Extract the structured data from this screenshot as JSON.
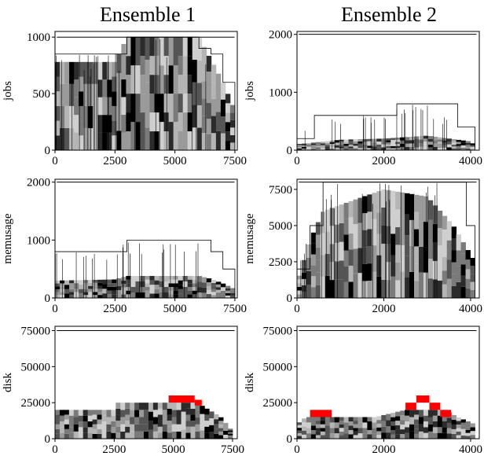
{
  "columns": [
    {
      "title": "Ensemble 1"
    },
    {
      "title": "Ensemble 2"
    }
  ],
  "colors": {
    "red_block": "#ff0000",
    "grays": [
      "#000000",
      "#2b2b2b",
      "#555555",
      "#7a7a7a",
      "#9a9a9a",
      "#b5b5b5",
      "#cfcfcf"
    ]
  },
  "chart_data": [
    {
      "type": "area",
      "description_ensemble": "Ensemble 1",
      "ylabel": "jobs",
      "xlim": [
        0,
        7600
      ],
      "ylim": [
        0,
        1050
      ],
      "xticks": [
        "0",
        "2500",
        "5000",
        "7500"
      ],
      "xtick_values": [
        0,
        2500,
        5000,
        7500
      ],
      "yticks": [
        "0",
        "500",
        "1000"
      ],
      "ytick_values": [
        0,
        500,
        1000
      ],
      "capacity_line": 1000,
      "envelope": {
        "x": [
          0,
          300,
          2500,
          3000,
          5500,
          6000,
          6500,
          7000,
          7500
        ],
        "y": [
          850,
          850,
          850,
          1000,
          1000,
          900,
          850,
          600,
          400
        ]
      },
      "stack_top": {
        "x": [
          0,
          2500,
          3000,
          6000,
          6500,
          7000,
          7500
        ],
        "y": [
          780,
          780,
          1000,
          1000,
          800,
          600,
          350
        ]
      }
    },
    {
      "type": "area",
      "description_ensemble": "Ensemble 2",
      "ylabel": "jobs",
      "xlim": [
        0,
        4200
      ],
      "ylim": [
        0,
        2050
      ],
      "xticks": [
        "0",
        "2000",
        "4000"
      ],
      "xtick_values": [
        0,
        2000,
        4000
      ],
      "yticks": [
        "0",
        "1000",
        "2000"
      ],
      "ytick_values": [
        0,
        1000,
        2000
      ],
      "capacity_line": 2000,
      "envelope": {
        "x": [
          0,
          400,
          1800,
          2300,
          3000,
          3700,
          4100
        ],
        "y": [
          200,
          600,
          600,
          800,
          800,
          400,
          300
        ]
      },
      "stack_top": {
        "x": [
          0,
          1000,
          2000,
          3000,
          4000,
          4100
        ],
        "y": [
          100,
          180,
          200,
          250,
          150,
          80
        ]
      }
    },
    {
      "type": "area",
      "description_ensemble": "Ensemble 1",
      "ylabel": "memusage",
      "xlim": [
        0,
        7600
      ],
      "ylim": [
        0,
        2050
      ],
      "xticks": [
        "0",
        "2500",
        "5000",
        "7500"
      ],
      "xtick_values": [
        0,
        2500,
        5000,
        7500
      ],
      "yticks": [
        "0",
        "1000",
        "2000"
      ],
      "ytick_values": [
        0,
        1000,
        2000
      ],
      "capacity_line": 2000,
      "envelope": {
        "x": [
          0,
          300,
          2500,
          3000,
          5500,
          6000,
          6500,
          7000,
          7500
        ],
        "y": [
          800,
          800,
          800,
          1000,
          1000,
          1000,
          800,
          500,
          300
        ]
      },
      "stack_top": {
        "x": [
          0,
          2500,
          3000,
          6000,
          6500,
          7000,
          7500
        ],
        "y": [
          300,
          320,
          380,
          380,
          330,
          250,
          150
        ]
      }
    },
    {
      "type": "area",
      "description_ensemble": "Ensemble 2",
      "ylabel": "memusage",
      "xlim": [
        0,
        4200
      ],
      "ylim": [
        0,
        8200
      ],
      "xticks": [
        "0",
        "2000",
        "4000"
      ],
      "xtick_values": [
        0,
        2000,
        4000
      ],
      "yticks": [
        "0",
        "2500",
        "5000",
        "7500"
      ],
      "ytick_values": [
        0,
        2500,
        5000,
        7500
      ],
      "capacity_line": 8000,
      "envelope": {
        "x": [
          0,
          300,
          600,
          3600,
          3900,
          4100
        ],
        "y": [
          2000,
          5000,
          8000,
          8000,
          5000,
          3000
        ]
      },
      "stack_top": {
        "x": [
          0,
          300,
          600,
          2000,
          3000,
          3600,
          4100
        ],
        "y": [
          1000,
          4000,
          6000,
          7500,
          7000,
          5000,
          2500
        ]
      }
    },
    {
      "type": "area",
      "description_ensemble": "Ensemble 1",
      "ylabel": "disk",
      "xlim": [
        0,
        7700
      ],
      "ylim": [
        0,
        78000
      ],
      "xticks": [
        "0",
        "2500",
        "5000",
        "7500"
      ],
      "xtick_values": [
        0,
        2500,
        5000,
        7500
      ],
      "yticks": [
        "0",
        "25000",
        "50000",
        "75000"
      ],
      "ytick_values": [
        0,
        25000,
        50000,
        75000
      ],
      "capacity_line": 75000,
      "stack_top": {
        "x": [
          0,
          2500,
          2600,
          5000,
          6000,
          6500,
          7000,
          7500
        ],
        "y": [
          20000,
          20000,
          25000,
          25000,
          25000,
          20000,
          15000,
          5000
        ]
      },
      "red_segments": [
        {
          "x0": 4800,
          "x1": 5900,
          "y0": 25000,
          "y1": 30000
        },
        {
          "x0": 5900,
          "x1": 6200,
          "y0": 23000,
          "y1": 27000
        }
      ]
    },
    {
      "type": "area",
      "description_ensemble": "Ensemble 2",
      "ylabel": "disk",
      "xlim": [
        0,
        4200
      ],
      "ylim": [
        0,
        78000
      ],
      "xticks": [
        "0",
        "2000",
        "4000"
      ],
      "xtick_values": [
        0,
        2000,
        4000
      ],
      "yticks": [
        "0",
        "25000",
        "50000",
        "75000"
      ],
      "ytick_values": [
        0,
        25000,
        50000,
        75000
      ],
      "capacity_line": 75000,
      "stack_top": {
        "x": [
          0,
          200,
          1000,
          1800,
          2500,
          3400,
          3700,
          4100
        ],
        "y": [
          10000,
          15000,
          15000,
          15000,
          20000,
          20000,
          15000,
          10000
        ]
      },
      "red_segments": [
        {
          "x0": 300,
          "x1": 800,
          "y0": 15000,
          "y1": 20000
        },
        {
          "x0": 2500,
          "x1": 2750,
          "y0": 20000,
          "y1": 25000
        },
        {
          "x0": 2750,
          "x1": 3050,
          "y0": 25000,
          "y1": 30000
        },
        {
          "x0": 3050,
          "x1": 3300,
          "y0": 20000,
          "y1": 25000
        },
        {
          "x0": 3300,
          "x1": 3550,
          "y0": 15000,
          "y1": 20000
        }
      ]
    }
  ]
}
